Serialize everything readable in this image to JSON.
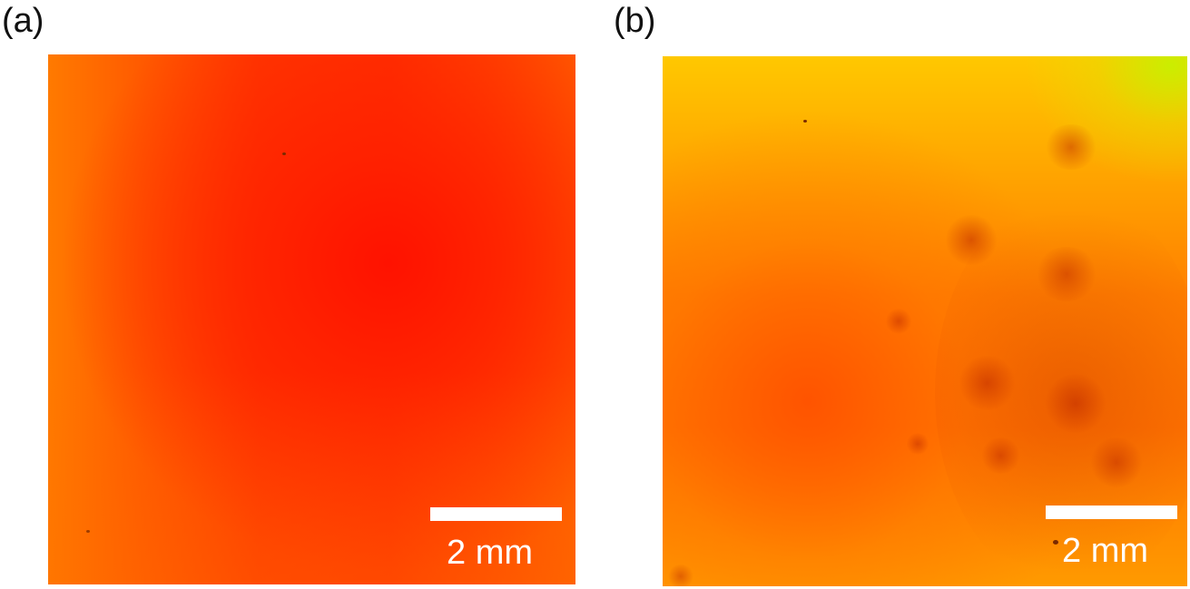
{
  "panels": [
    {
      "label": "(a)",
      "scale_bar_text": "2 mm"
    },
    {
      "label": "(b)",
      "scale_bar_text": "2 mm"
    }
  ]
}
